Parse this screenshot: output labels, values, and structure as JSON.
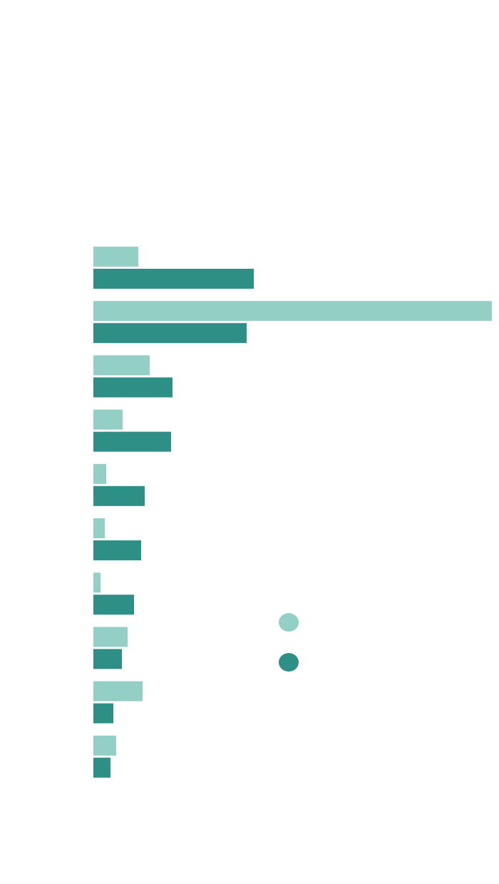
{
  "chart_data": {
    "type": "bar",
    "orientation": "horizontal",
    "categories": [
      null,
      null,
      null,
      null,
      null,
      null,
      null,
      null,
      null,
      null
    ],
    "series": [
      {
        "color": "#94cfc6",
        "values": [
          63,
          559,
          79,
          41,
          18,
          16,
          10,
          48,
          69,
          32
        ]
      },
      {
        "color": "#2e8f86",
        "values": [
          225,
          215,
          111,
          109,
          72,
          67,
          57,
          40,
          28,
          24
        ]
      }
    ],
    "xlim": [
      0,
      559
    ],
    "legend": "right"
  }
}
